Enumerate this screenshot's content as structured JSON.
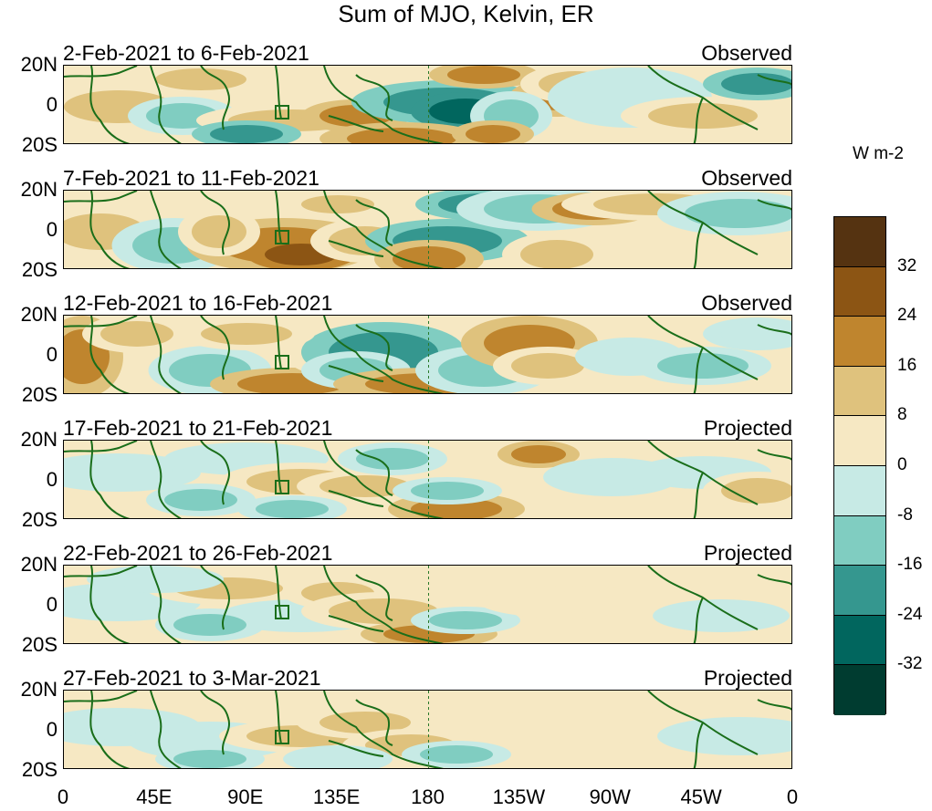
{
  "title": "Sum of MJO, Kelvin, ER",
  "lat_labels": [
    "20N",
    "0",
    "20S"
  ],
  "x_ticks": [
    "0",
    "45E",
    "90E",
    "135E",
    "180",
    "135W",
    "90W",
    "45W",
    "0"
  ],
  "panels": [
    {
      "dates": "2-Feb-2021 to 6-Feb-2021",
      "status": "Observed"
    },
    {
      "dates": "7-Feb-2021 to 11-Feb-2021",
      "status": "Observed"
    },
    {
      "dates": "12-Feb-2021 to 16-Feb-2021",
      "status": "Observed"
    },
    {
      "dates": "17-Feb-2021 to 21-Feb-2021",
      "status": "Projected"
    },
    {
      "dates": "22-Feb-2021 to 26-Feb-2021",
      "status": "Projected"
    },
    {
      "dates": "27-Feb-2021 to 3-Mar-2021",
      "status": "Projected"
    }
  ],
  "legend": {
    "unit": "W m-2",
    "ticks": [
      "32",
      "24",
      "16",
      "8",
      "0",
      "-8",
      "-16",
      "-24",
      "-32"
    ],
    "colors": [
      "#553311",
      "#8c5514",
      "#bf852e",
      "#dfc27d",
      "#f6e8c3",
      "#c7eae5",
      "#80cdc1",
      "#35978f",
      "#01665e",
      "#003c30"
    ]
  },
  "colors": {
    "coastline": "#1a6e1a",
    "dateline": "#2a7a2a"
  }
}
